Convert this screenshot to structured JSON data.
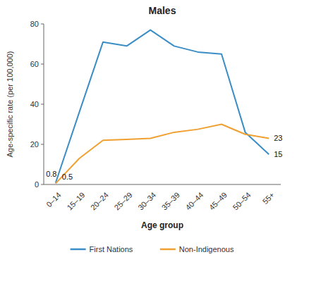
{
  "chart_data": {
    "type": "line",
    "title": "Males",
    "x_label": "Age group",
    "y_label": "Age-specific rate (per 100,000)",
    "categories": [
      "0–14",
      "15–19",
      "20–24",
      "25–29",
      "30–34",
      "35–39",
      "40–44",
      "45–49",
      "50–54",
      "55+"
    ],
    "series": [
      {
        "name": "First Nations",
        "color": "#3A8DC5",
        "values": [
          0.8,
          36,
          71,
          69,
          77,
          69,
          66,
          65,
          26,
          15
        ],
        "value_labels": [
          "0.8",
          null,
          null,
          null,
          null,
          null,
          null,
          null,
          null,
          "15"
        ]
      },
      {
        "name": "Non-Indigenous",
        "color": "#F0A030",
        "values": [
          0.5,
          13,
          22,
          22.5,
          23,
          26,
          27.5,
          30,
          25,
          23
        ],
        "value_labels": [
          "0.5",
          null,
          null,
          null,
          null,
          null,
          null,
          null,
          null,
          "23"
        ]
      }
    ],
    "ylim": [
      0,
      80
    ],
    "yticks": [
      0,
      20,
      40,
      60,
      80
    ],
    "grid": false,
    "legend": "bottom"
  }
}
